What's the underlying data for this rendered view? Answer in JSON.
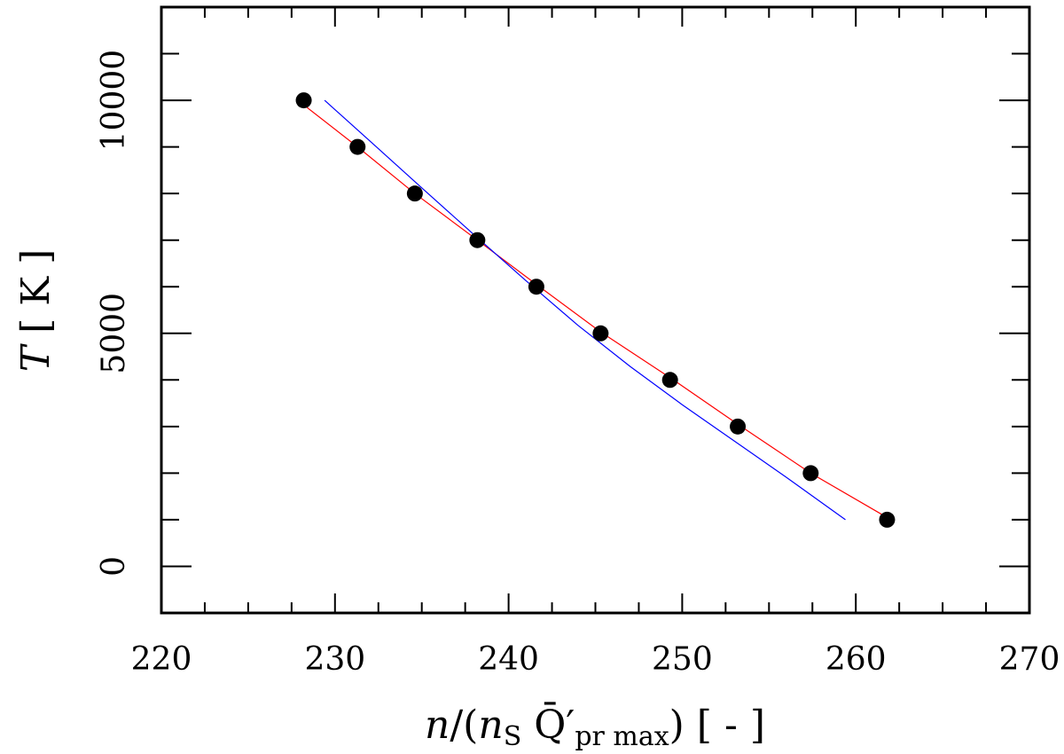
{
  "chart_data": {
    "type": "scatter",
    "xlabel": "n/(nS Q̄′pr max) [ - ]",
    "ylabel": "T [ K ]",
    "xlim": [
      220,
      270
    ],
    "ylim": [
      -1000,
      12000
    ],
    "x_ticks": [
      220,
      230,
      240,
      250,
      260,
      270
    ],
    "y_ticks": [
      0,
      5000,
      10000
    ],
    "x_minor_step": 2.5,
    "y_minor_step": 1000,
    "grid": false,
    "legend": "none",
    "series": [
      {
        "kind": "points",
        "color": "#000000",
        "x": [
          228.2,
          231.3,
          234.6,
          238.2,
          241.6,
          245.3,
          249.3,
          253.2,
          257.4,
          261.8
        ],
        "y": [
          10000,
          9000,
          8000,
          7000,
          6000,
          5000,
          4000,
          3000,
          2000,
          1000
        ]
      },
      {
        "kind": "line",
        "color": "#ff0000",
        "x": [
          228.2,
          231.3,
          234.6,
          238.2,
          241.6,
          245.3,
          249.3,
          253.2,
          257.4,
          261.8
        ],
        "y": [
          9900,
          9000,
          8000,
          7000,
          6050,
          5030,
          4050,
          3050,
          2000,
          1050
        ]
      },
      {
        "kind": "line",
        "color": "#0000ff",
        "x": [
          229.4,
          232.0,
          235.0,
          238.0,
          241.0,
          244.0,
          247.0,
          250.0,
          253.0,
          256.0,
          259.4
        ],
        "y": [
          10000,
          9130,
          8120,
          7120,
          6130,
          5170,
          4290,
          3470,
          2690,
          1910,
          1000
        ]
      }
    ]
  }
}
